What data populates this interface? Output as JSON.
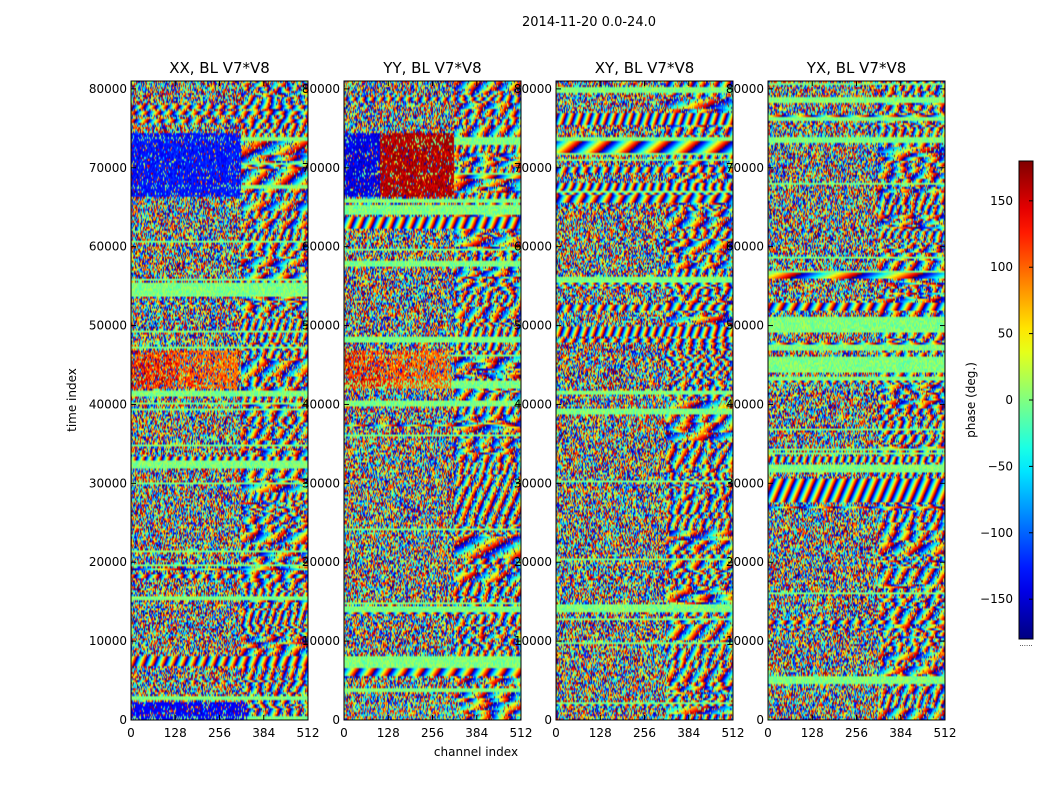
{
  "chart_data": {
    "type": "heatmap",
    "suptitle": "2014-11-20 0.0-24.0",
    "xlabel": "channel index",
    "ylabel": "time index",
    "xlim": [
      0,
      512
    ],
    "ylim": [
      0,
      81000
    ],
    "xticks": [
      0,
      128,
      256,
      384,
      512
    ],
    "yticks": [
      0,
      10000,
      20000,
      30000,
      40000,
      50000,
      60000,
      70000,
      80000
    ],
    "panels": [
      {
        "name": "xx",
        "title": "XX, BL V7*V8"
      },
      {
        "name": "yy",
        "title": "YY, BL V7*V8"
      },
      {
        "name": "xy",
        "title": "XY, BL V7*V8"
      },
      {
        "name": "yx",
        "title": "YX, BL V7*V8"
      }
    ],
    "colorbar": {
      "label": "phase (deg.)",
      "vmin": -180,
      "vmax": 180,
      "ticks": [
        -150,
        -100,
        -50,
        0,
        50,
        100,
        150
      ],
      "tick_labels": [
        "−150",
        "−100",
        "−50",
        "0",
        "50",
        "100",
        "150"
      ],
      "footer": "......"
    },
    "colormap": "jet"
  }
}
